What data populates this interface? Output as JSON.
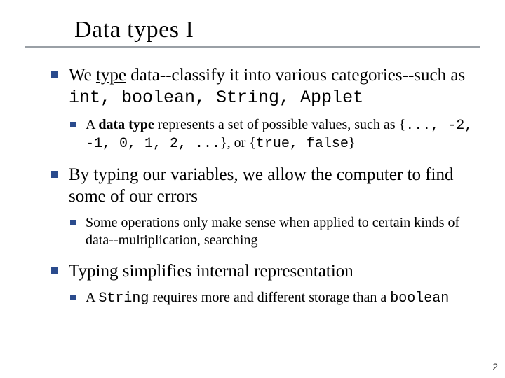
{
  "title": "Data types I",
  "bullet1_pre": "We ",
  "bullet1_type": "type",
  "bullet1_mid": " data--classify it into various categories--such as ",
  "bullet1_codes": "int, boolean, String, Applet",
  "bullet1a_pre": "A ",
  "bullet1a_bold": "data type",
  "bullet1a_mid": " represents a set of possible values, such as ",
  "bullet1a_set_open": "{",
  "bullet1a_set_codes": "..., -2, -1, 0, 1, 2, ...",
  "bullet1a_set_mid": "}, or {",
  "bullet1a_tf": "true, false",
  "bullet1a_set_close": "}",
  "bullet2": "By typing our variables, we allow the computer to find some of our errors",
  "bullet2a": "Some operations only make sense when applied to certain kinds of data--multiplication, searching",
  "bullet3": "Typing simplifies internal representation",
  "bullet3a_pre": "A ",
  "bullet3a_string": "String",
  "bullet3a_mid": " requires more and different storage than a ",
  "bullet3a_boolean": "boolean",
  "page_number": "2",
  "style": {
    "bullet_color": "#2a4b8d",
    "title_underline_color": "#9aa0a6",
    "title_fontsize": 34,
    "body_fontsize_lv1": 25,
    "body_fontsize_lv2": 20,
    "font_family_body": "Times New Roman",
    "font_family_code": "Courier New",
    "background_color": "#ffffff",
    "text_color": "#000000"
  }
}
